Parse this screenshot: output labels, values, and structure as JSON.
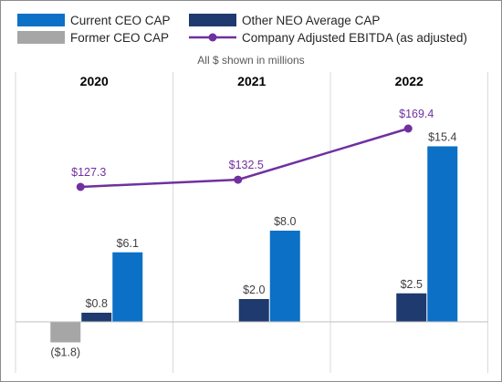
{
  "chart_data": {
    "type": "bar",
    "subtitle": "All $ shown in millions",
    "categories": [
      "2020",
      "2021",
      "2022"
    ],
    "series": [
      {
        "name": "Former CEO CAP",
        "values": [
          -1.8,
          null,
          null
        ],
        "labels": [
          "($1.8)",
          "",
          ""
        ],
        "color": "#a6a6a6"
      },
      {
        "name": "Other NEO Average CAP",
        "values": [
          0.8,
          2.0,
          2.5
        ],
        "labels": [
          "$0.8",
          "$2.0",
          "$2.5"
        ],
        "color": "#1f3a6e"
      },
      {
        "name": "Current CEO CAP",
        "values": [
          6.1,
          8.0,
          15.4
        ],
        "labels": [
          "$6.1",
          "$8.0",
          "$15.4"
        ],
        "color": "#0b70c6"
      }
    ],
    "line_series": {
      "name": "Company Adjusted EBITDA (as adjusted)",
      "values": [
        127.3,
        132.5,
        169.4
      ],
      "labels": [
        "$127.3",
        "$132.5",
        "$169.4"
      ],
      "color": "#7030a0"
    },
    "legend": [
      {
        "label": "Current CEO CAP",
        "kind": "box",
        "color": "#0b70c6"
      },
      {
        "label": "Other NEO Average CAP",
        "kind": "box",
        "color": "#1f3a6e"
      },
      {
        "label": "Former CEO CAP",
        "kind": "box",
        "color": "#a6a6a6"
      },
      {
        "label": "Company Adjusted EBITDA (as adjusted)",
        "kind": "line",
        "color": "#7030a0"
      }
    ],
    "legend_position": "top",
    "grid": false
  }
}
